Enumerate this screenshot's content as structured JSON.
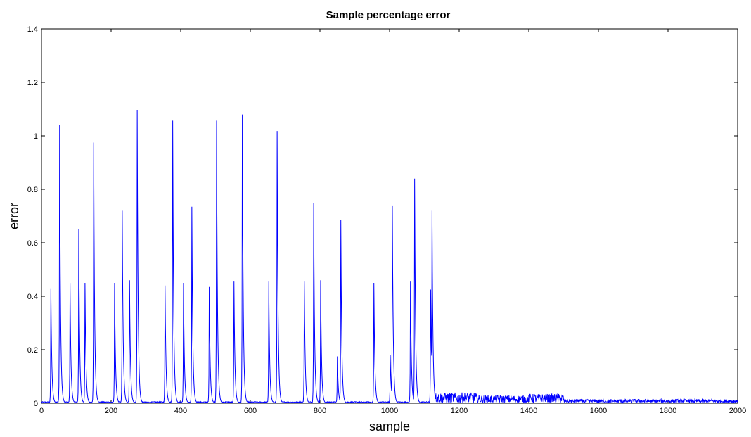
{
  "chart_data": {
    "type": "line",
    "title": "Sample percentage error",
    "xlabel": "sample",
    "ylabel": "error",
    "xlim": [
      0,
      2000
    ],
    "ylim": [
      0,
      1.4
    ],
    "x_ticks": [
      0,
      200,
      400,
      600,
      800,
      1000,
      1200,
      1400,
      1600,
      1800,
      2000
    ],
    "y_ticks": [
      0,
      0.2,
      0.4,
      0.6,
      0.8,
      1,
      1.2,
      1.4
    ],
    "x_tick_labels": [
      "0",
      "200",
      "400",
      "600",
      "800",
      "1000",
      "1200",
      "1400",
      "1600",
      "1800",
      "2000"
    ],
    "y_tick_labels": [
      "0",
      "0.2",
      "0.4",
      "0.6",
      "0.8",
      "1",
      "1.2",
      "1.4"
    ],
    "grid": false,
    "legend": "none",
    "line_color": "#0000ff",
    "series": [
      {
        "peaks": [
          {
            "x": 27,
            "y": 0.43
          },
          {
            "x": 52,
            "y": 1.04
          },
          {
            "x": 82,
            "y": 0.45
          },
          {
            "x": 107,
            "y": 0.65
          },
          {
            "x": 125,
            "y": 0.45
          },
          {
            "x": 150,
            "y": 0.975
          },
          {
            "x": 210,
            "y": 0.45
          },
          {
            "x": 232,
            "y": 0.72
          },
          {
            "x": 253,
            "y": 0.46
          },
          {
            "x": 275,
            "y": 1.095
          },
          {
            "x": 355,
            "y": 0.44
          },
          {
            "x": 377,
            "y": 1.057
          },
          {
            "x": 408,
            "y": 0.45
          },
          {
            "x": 432,
            "y": 0.735
          },
          {
            "x": 482,
            "y": 0.435
          },
          {
            "x": 503,
            "y": 1.057
          },
          {
            "x": 553,
            "y": 0.455
          },
          {
            "x": 577,
            "y": 1.08
          },
          {
            "x": 653,
            "y": 0.455
          },
          {
            "x": 677,
            "y": 1.018
          },
          {
            "x": 755,
            "y": 0.455
          },
          {
            "x": 782,
            "y": 0.75
          },
          {
            "x": 802,
            "y": 0.46
          },
          {
            "x": 850,
            "y": 0.175
          },
          {
            "x": 860,
            "y": 0.685
          },
          {
            "x": 955,
            "y": 0.45
          },
          {
            "x": 1002,
            "y": 0.18
          },
          {
            "x": 1008,
            "y": 0.737
          },
          {
            "x": 1060,
            "y": 0.455
          },
          {
            "x": 1072,
            "y": 0.84
          },
          {
            "x": 1118,
            "y": 0.425
          },
          {
            "x": 1122,
            "y": 0.72
          }
        ],
        "noise_regions": [
          {
            "x": [
              1130,
              1250
            ],
            "y_max": 0.04
          },
          {
            "x": [
              1250,
              1400
            ],
            "y_max": 0.03
          },
          {
            "x": [
              1400,
              1500
            ],
            "y_max": 0.035
          },
          {
            "x": [
              1500,
              2000
            ],
            "y_max": 0.015
          }
        ]
      }
    ]
  }
}
